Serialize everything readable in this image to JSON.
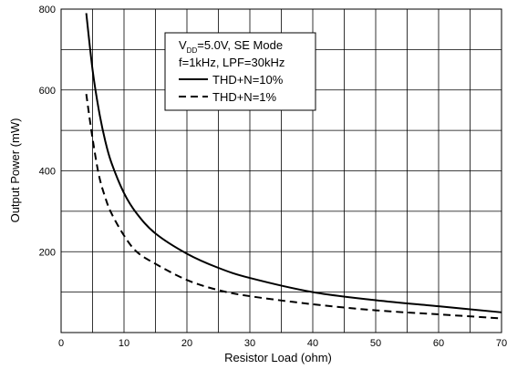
{
  "chart_data": {
    "type": "line",
    "title": "",
    "xlabel": "Resistor Load (ohm)",
    "ylabel": "Output Power (mW)",
    "xlim": [
      0,
      70
    ],
    "ylim": [
      0,
      800
    ],
    "xticks": [
      0,
      10,
      20,
      30,
      40,
      50,
      60,
      70
    ],
    "yticks": [
      200,
      400,
      600,
      800
    ],
    "grid": true,
    "legend": {
      "placement": "top-left",
      "condition_vdd_main": "V",
      "condition_vdd_sub": "DD",
      "condition_vdd_rest": "=5.0V, SE Mode",
      "condition_line2": "f=1kHz, LPF=30kHz"
    },
    "series": [
      {
        "name": "THD+N=10%",
        "style": "solid",
        "x": [
          4,
          5,
          6,
          7,
          8,
          10,
          12,
          15,
          20,
          25,
          30,
          40,
          50,
          60,
          70
        ],
        "y": [
          790,
          650,
          550,
          475,
          420,
          345,
          295,
          245,
          195,
          160,
          135,
          100,
          80,
          65,
          50
        ]
      },
      {
        "name": "THD+N=1%",
        "style": "dashed",
        "x": [
          4,
          5,
          6,
          7,
          8,
          10,
          12,
          15,
          20,
          25,
          30,
          40,
          50,
          60,
          70
        ],
        "y": [
          590,
          480,
          390,
          335,
          295,
          240,
          200,
          170,
          130,
          105,
          90,
          70,
          55,
          45,
          35
        ]
      }
    ]
  }
}
